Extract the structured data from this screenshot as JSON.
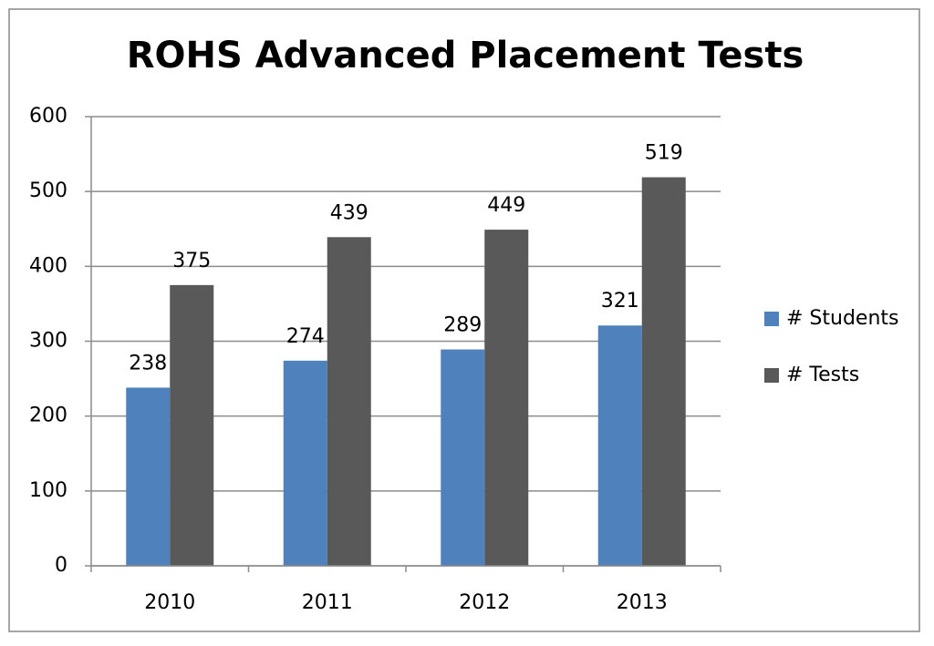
{
  "chart_data": {
    "type": "bar",
    "title": "ROHS Advanced Placement Tests",
    "categories": [
      "2010",
      "2011",
      "2012",
      "2013"
    ],
    "series": [
      {
        "name": "# Students",
        "color": "#4f81bd",
        "values": [
          238,
          274,
          289,
          321
        ]
      },
      {
        "name": "# Tests",
        "color": "#595959",
        "values": [
          375,
          439,
          449,
          519
        ]
      }
    ],
    "ylim": [
      0,
      600
    ],
    "yticks": [
      0,
      100,
      200,
      300,
      400,
      500,
      600
    ],
    "grid": true,
    "legend": "right"
  }
}
